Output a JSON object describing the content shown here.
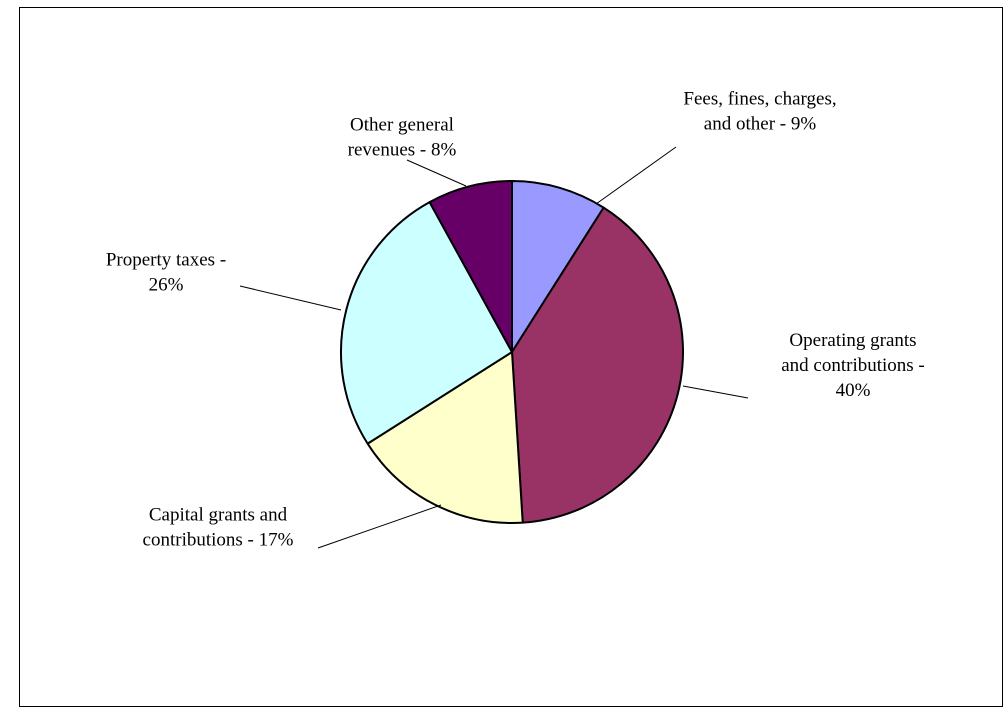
{
  "chart_data": {
    "type": "pie",
    "title": "",
    "start_angle_deg": 0,
    "direction": "clockwise",
    "legend": "none",
    "slices": [
      {
        "category": "Fees, fines, charges, and other",
        "value": 9,
        "label_lines": [
          "Fees, fines, charges,",
          "and other - 9%"
        ],
        "color": "#9999FF"
      },
      {
        "category": "Operating grants and contributions",
        "value": 40,
        "label_lines": [
          "Operating grants",
          "and contributions -",
          "40%"
        ],
        "color": "#993366"
      },
      {
        "category": "Capital grants and contributions",
        "value": 17,
        "label_lines": [
          "Capital grants and",
          "contributions - 17%"
        ],
        "color": "#FFFFCC"
      },
      {
        "category": "Property taxes",
        "value": 26,
        "label_lines": [
          "Property taxes -",
          "26%"
        ],
        "color": "#CCFFFF"
      },
      {
        "category": "Other general revenues",
        "value": 8,
        "label_lines": [
          "Other general",
          "revenues - 8%"
        ],
        "color": "#660066"
      }
    ]
  }
}
